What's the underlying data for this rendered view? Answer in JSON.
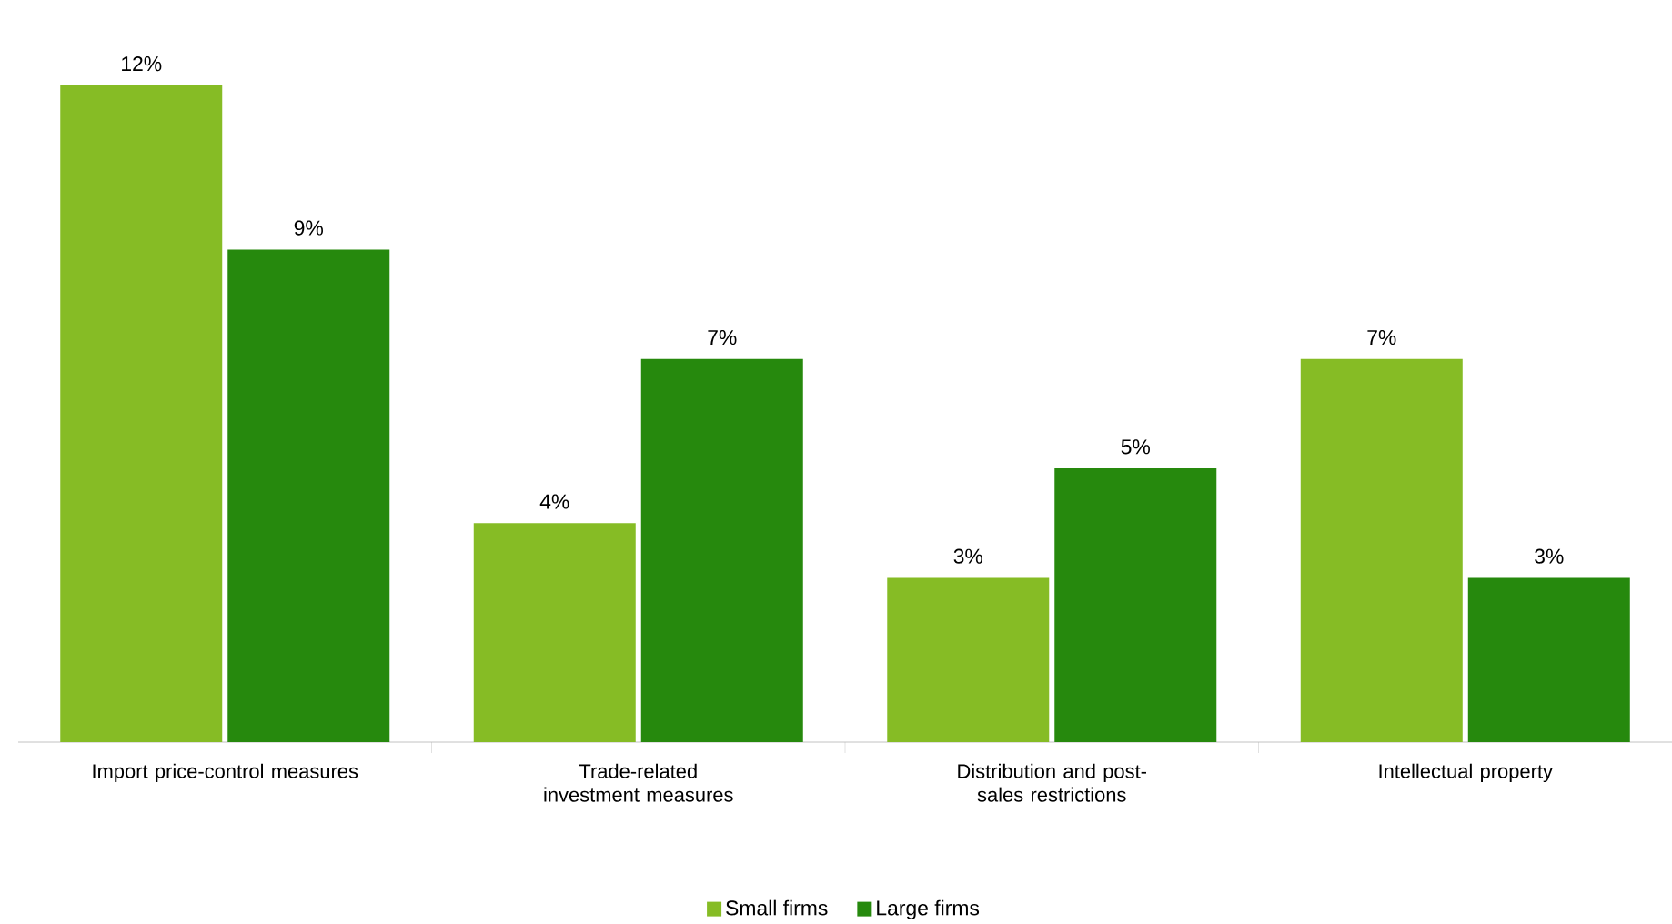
{
  "chart_data": {
    "type": "bar",
    "categories": [
      "Import price-control measures",
      "Trade-related investment measures",
      "Distribution and post-sales restrictions",
      "Intellectual property"
    ],
    "series": [
      {
        "name": "Small firms",
        "color": "#86bc25",
        "values": [
          12,
          4,
          3,
          7
        ],
        "value_labels": [
          "12%",
          "4%",
          "3%",
          "7%"
        ]
      },
      {
        "name": "Large firms",
        "color": "#26890d",
        "values": [
          9,
          7,
          5,
          3
        ],
        "value_labels": [
          "9%",
          "7%",
          "5%",
          "3%"
        ]
      }
    ],
    "legend": "bottom"
  }
}
